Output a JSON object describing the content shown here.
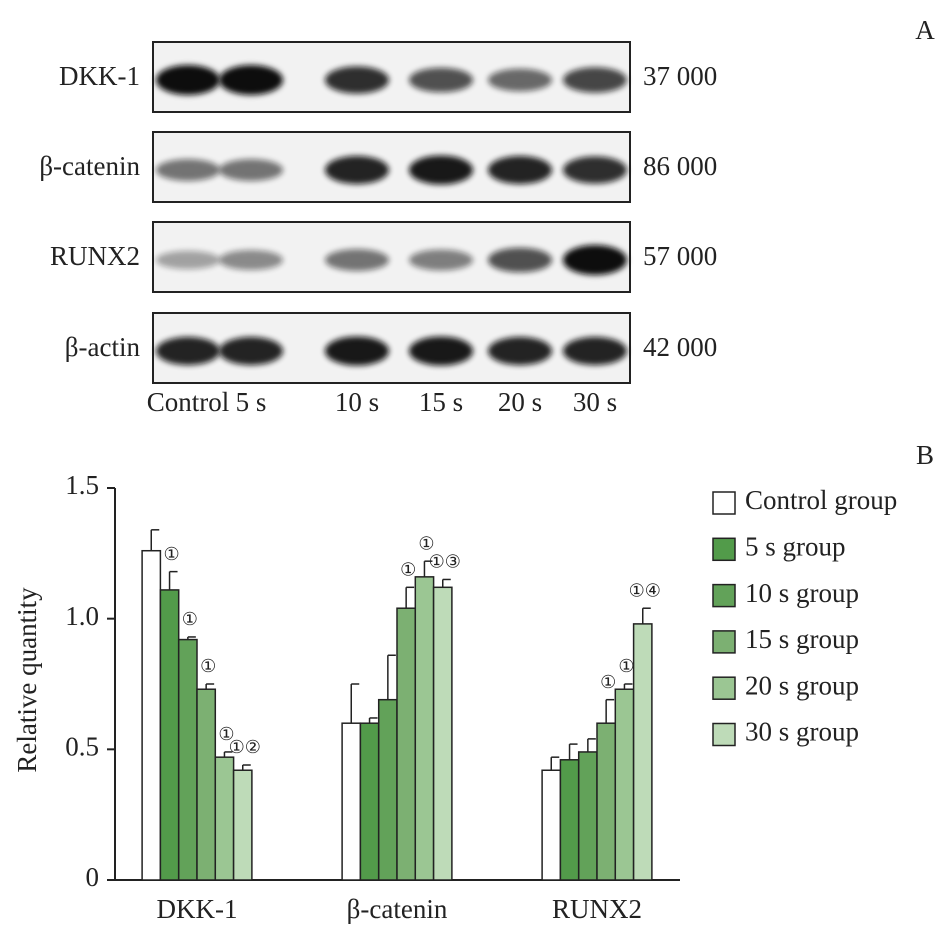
{
  "panel_a": {
    "label": "A",
    "rows": [
      {
        "label": "DKK-1",
        "weight": "37 000"
      },
      {
        "label": "β-catenin",
        "weight": "86 000"
      },
      {
        "label": "RUNX2",
        "weight": "57 000"
      },
      {
        "label": "β-actin",
        "weight": "42 000"
      }
    ],
    "lanes": [
      "Control",
      "5 s",
      "10 s",
      "15 s",
      "20 s",
      "30 s"
    ]
  },
  "chart_data": {
    "type": "bar",
    "panel_label": "B",
    "ylabel": "Relative quantity",
    "categories": [
      "DKK-1",
      "β-catenin",
      "RUNX2"
    ],
    "ylim": [
      0,
      1.5
    ],
    "yticks": [
      0,
      0.5,
      {
        "value": 1,
        "label": "1.0"
      },
      1.5
    ],
    "series": [
      {
        "name": "Control group",
        "color": "#ffffff",
        "values": [
          1.26,
          0.6,
          0.42
        ],
        "errors": [
          0.08,
          0.15,
          0.05
        ],
        "annotations": [
          null,
          null,
          null
        ]
      },
      {
        "name": "5 s group",
        "color": "#529b4a",
        "values": [
          1.11,
          0.6,
          0.46
        ],
        "errors": [
          0.07,
          0.02,
          0.06
        ],
        "annotations": [
          "①",
          null,
          null
        ]
      },
      {
        "name": "10 s group",
        "color": "#62a259",
        "values": [
          0.92,
          0.69,
          0.49
        ],
        "errors": [
          0.01,
          0.17,
          0.05
        ],
        "annotations": [
          "①",
          null,
          null
        ]
      },
      {
        "name": "15 s group",
        "color": "#7cb072",
        "values": [
          0.73,
          1.04,
          0.6
        ],
        "errors": [
          0.02,
          0.08,
          0.09
        ],
        "annotations": [
          "①",
          "①",
          "①"
        ]
      },
      {
        "name": "20 s group",
        "color": "#9bc693",
        "values": [
          0.47,
          1.16,
          0.73
        ],
        "errors": [
          0.02,
          0.06,
          0.02
        ],
        "annotations": [
          "①",
          "①",
          "①"
        ]
      },
      {
        "name": "30 s group",
        "color": "#bedbb8",
        "values": [
          0.42,
          1.12,
          0.98
        ],
        "errors": [
          0.02,
          0.03,
          0.06
        ],
        "annotations": [
          "①②",
          "①③",
          "①④"
        ]
      }
    ]
  }
}
